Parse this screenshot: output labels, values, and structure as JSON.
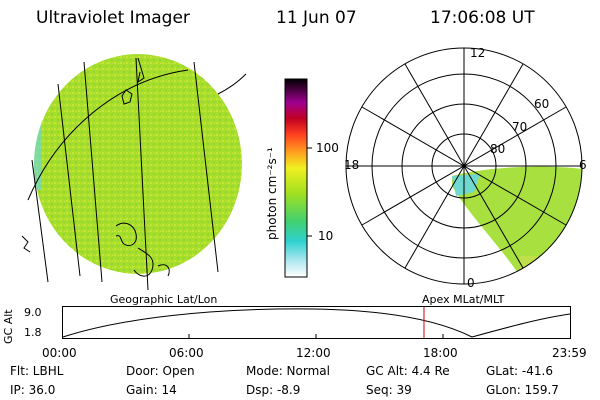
{
  "header": {
    "instrument": "Ultraviolet Imager",
    "date": "11 Jun 07",
    "time": "17:06:08 UT"
  },
  "colorbar": {
    "unit": "photon cm⁻²s⁻¹",
    "ticks": [
      "100",
      "10"
    ]
  },
  "polar_plot": {
    "hour_labels": [
      "12",
      "18",
      "6",
      "0"
    ],
    "lat_labels": [
      "60",
      "70",
      "80"
    ]
  },
  "altitude_panel": {
    "y_axis_label": "GC Alt",
    "y_ticks": [
      "9.0",
      "1.8"
    ],
    "left_title": "Geographic Lat/Lon",
    "right_title": "Apex  MLat/MLT",
    "time_ticks": [
      "00:00",
      "06:00",
      "12:00",
      "18:00",
      "23:59"
    ],
    "current_time_fraction": 0.712
  },
  "footer": {
    "filter": "Flt: LBHL",
    "ip": "IP: 36.0",
    "door": "Door: Open",
    "gain": "Gain: 14",
    "mode": "Mode: Normal",
    "dsp": "Dsp:    -8.9",
    "gc_alt": "GC Alt: 4.4 Re",
    "seq": "Seq: 39",
    "glat": "GLat: -41.6",
    "glon": "GLon: 159.7"
  },
  "colors": {
    "disk": "#a8e020",
    "aurora": "#a8e040",
    "edge_cyan": "#6fd8d0",
    "marker": "#d00000"
  }
}
